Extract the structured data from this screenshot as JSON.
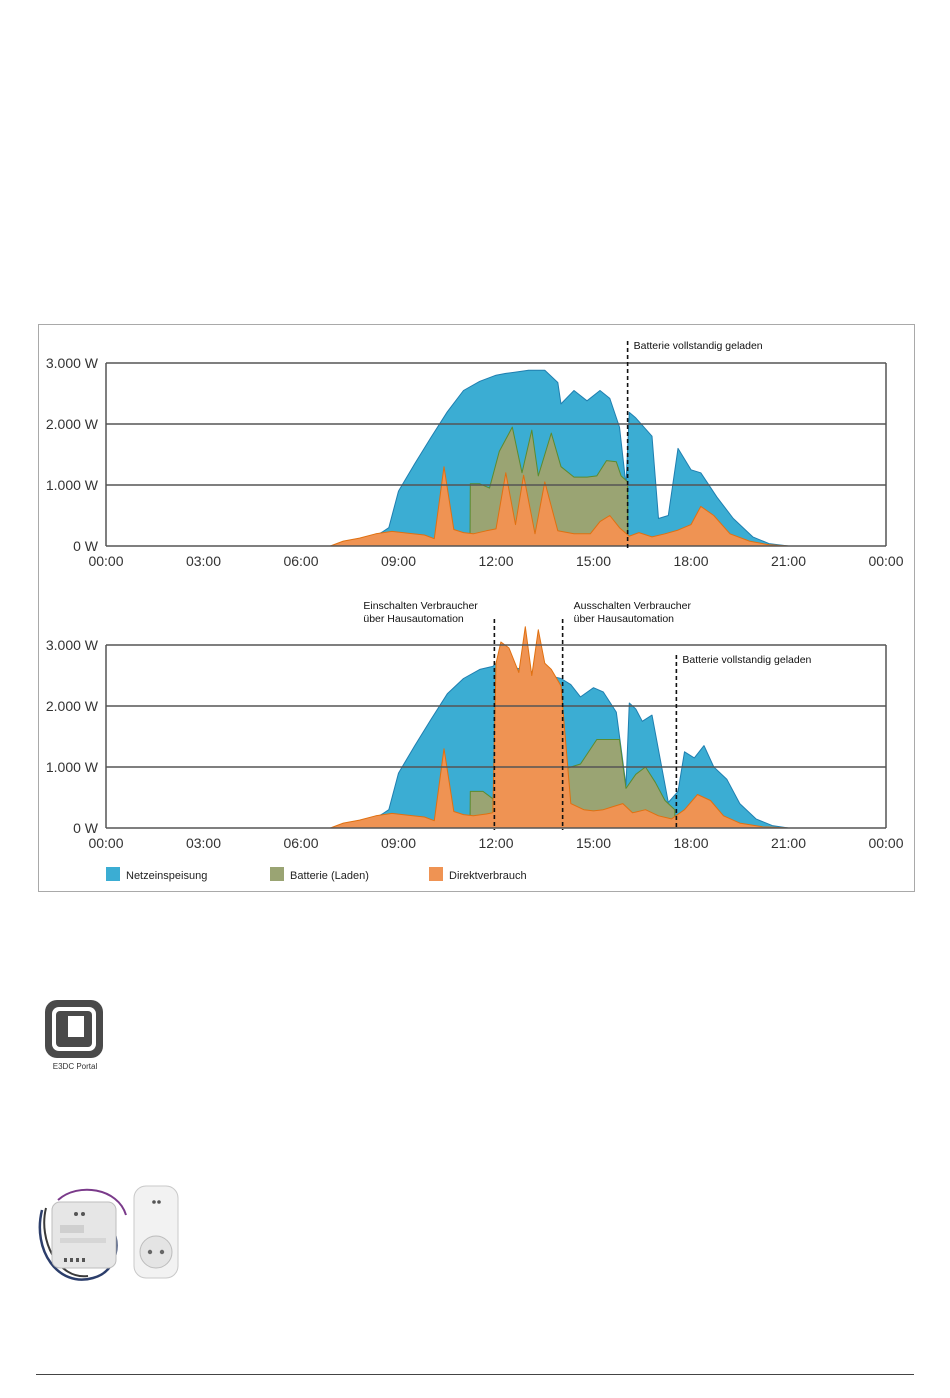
{
  "colors": {
    "netzeinspeisung": "#3badd3",
    "batterie": "#9aa473",
    "direktverbrauch": "#ef9353",
    "batterie_line": "#5b8b2e",
    "direkt_line": "#e07010",
    "netz_line": "#1f7fb0",
    "grid": "#555555"
  },
  "portal": {
    "icon": "e3dc-portal-icon",
    "label": "E3DC Portal"
  },
  "devices": {
    "icon": "smart-home-actuator-and-plug-adapter"
  },
  "legend": [
    {
      "key": "netzeinspeisung",
      "label": "Netzeinspeisung"
    },
    {
      "key": "batterie",
      "label": "Batterie (Laden)"
    },
    {
      "key": "direktverbrauch",
      "label": "Direktverbrauch"
    }
  ],
  "chart_data": [
    {
      "type": "area",
      "stacked": false,
      "x_unit": "hours",
      "xlim": [
        0,
        24
      ],
      "ylim": [
        0,
        3000
      ],
      "yticks": [
        "0 W",
        "1.000 W",
        "2.000 W",
        "3.000 W"
      ],
      "ytick_values": [
        0,
        1000,
        2000,
        3000
      ],
      "xticks": [
        "00:00",
        "03:00",
        "06:00",
        "09:00",
        "12:00",
        "15:00",
        "18:00",
        "21:00",
        "00:00"
      ],
      "xtick_values": [
        0,
        3,
        6,
        9,
        12,
        15,
        18,
        21,
        24
      ],
      "grid": true,
      "series": [
        {
          "name": "Netzeinspeisung",
          "key": "netzeinspeisung",
          "x": [
            6.9,
            7.5,
            8,
            8.5,
            8.7,
            9,
            9.5,
            10,
            10.5,
            11,
            11.5,
            12,
            12.3,
            12.6,
            13,
            13.5,
            13.9,
            14,
            14.4,
            14.8,
            15.2,
            15.5,
            15.8,
            16,
            16.1,
            16.3,
            16.8,
            17,
            17.3,
            17.6,
            18,
            18.3,
            18.8,
            19.3,
            19.9,
            20.4,
            21
          ],
          "y": [
            0,
            40,
            90,
            230,
            300,
            900,
            1350,
            1780,
            2200,
            2550,
            2700,
            2800,
            2830,
            2850,
            2880,
            2880,
            2680,
            2330,
            2550,
            2380,
            2550,
            2420,
            1950,
            1000,
            2190,
            2100,
            1800,
            450,
            500,
            1600,
            1250,
            1200,
            800,
            450,
            150,
            40,
            0
          ]
        },
        {
          "name": "Batterie (Laden)",
          "key": "batterie",
          "x": [
            11.2,
            11.21,
            11.5,
            11.8,
            12.1,
            12.5,
            12.8,
            13.1,
            13.3,
            13.7,
            14.0,
            14.4,
            14.8,
            15.1,
            15.4,
            15.7,
            15.85,
            16.05,
            16.06
          ],
          "y": [
            0,
            1020,
            1020,
            950,
            1550,
            1950,
            1200,
            1900,
            1150,
            1850,
            1300,
            1130,
            1130,
            1150,
            1400,
            1380,
            1150,
            1050,
            0
          ]
        },
        {
          "name": "Direktverbrauch",
          "key": "direktverbrauch",
          "x": [
            6.9,
            7.3,
            7.8,
            8.3,
            8.8,
            9.3,
            9.8,
            10.1,
            10.4,
            10.7,
            11,
            11.3,
            11.7,
            12,
            12.3,
            12.6,
            12.85,
            13.2,
            13.5,
            13.9,
            14.4,
            14.9,
            15.2,
            15.5,
            15.8,
            16.1,
            16.4,
            16.8,
            17.2,
            17.6,
            18,
            18.3,
            18.7,
            19.2,
            19.8,
            20.4,
            21
          ],
          "y": [
            0,
            80,
            130,
            200,
            240,
            210,
            180,
            120,
            1300,
            270,
            220,
            200,
            250,
            280,
            1200,
            350,
            1160,
            200,
            1050,
            250,
            200,
            200,
            400,
            500,
            300,
            160,
            220,
            150,
            200,
            260,
            350,
            650,
            500,
            200,
            80,
            20,
            0
          ]
        }
      ],
      "markers": [
        {
          "x": 16.05,
          "label": "Batterie vollstandig geladen"
        }
      ]
    },
    {
      "type": "area",
      "stacked": false,
      "x_unit": "hours",
      "xlim": [
        0,
        24
      ],
      "ylim": [
        0,
        3000
      ],
      "yticks": [
        "0 W",
        "1.000 W",
        "2.000 W",
        "3.000 W"
      ],
      "ytick_values": [
        0,
        1000,
        2000,
        3000
      ],
      "xticks": [
        "00:00",
        "03:00",
        "06:00",
        "09:00",
        "12:00",
        "15:00",
        "18:00",
        "21:00",
        "00:00"
      ],
      "xtick_values": [
        0,
        3,
        6,
        9,
        12,
        15,
        18,
        21,
        24
      ],
      "grid": true,
      "series": [
        {
          "name": "Netzeinspeisung",
          "key": "netzeinspeisung",
          "x": [
            6.9,
            7.5,
            8,
            8.5,
            8.7,
            9,
            9.5,
            10,
            10.5,
            11,
            11.5,
            11.9,
            12.0,
            14.0,
            14.3,
            14.6,
            15.0,
            15.3,
            15.7,
            16.0,
            16.1,
            16.3,
            16.5,
            16.8,
            17.3,
            17.6,
            17.8,
            18.1,
            18.4,
            18.7,
            19.1,
            19.5,
            20,
            20.5,
            21
          ],
          "y": [
            0,
            40,
            90,
            230,
            300,
            900,
            1350,
            1780,
            2200,
            2450,
            2600,
            2650,
            2700,
            2450,
            2350,
            2150,
            2300,
            2230,
            1900,
            700,
            2050,
            1950,
            1750,
            1850,
            420,
            600,
            1250,
            1150,
            1350,
            1000,
            800,
            400,
            150,
            40,
            0
          ]
        },
        {
          "name": "Batterie (Laden)",
          "key": "batterie",
          "x": [
            11.2,
            11.21,
            11.6,
            11.9,
            11.95,
            14.0,
            14.01,
            14.6,
            15.1,
            15.5,
            15.8,
            16.0,
            16.3,
            16.6,
            16.9,
            17.2,
            17.5,
            17.51
          ],
          "y": [
            0,
            600,
            600,
            480,
            0,
            0,
            950,
            1050,
            1450,
            1450,
            1450,
            650,
            880,
            1000,
            750,
            450,
            300,
            0
          ]
        },
        {
          "name": "Direktverbrauch",
          "key": "direktverbrauch",
          "x": [
            6.9,
            7.3,
            7.8,
            8.3,
            8.8,
            9.3,
            9.8,
            10.1,
            10.4,
            10.7,
            11,
            11.3,
            11.7,
            11.9,
            12.0,
            12.15,
            12.4,
            12.7,
            12.9,
            13.1,
            13.3,
            13.5,
            13.7,
            14.0,
            14.3,
            14.7,
            15.0,
            15.3,
            15.6,
            15.9,
            16.2,
            16.6,
            17.0,
            17.4,
            17.8,
            18.2,
            18.6,
            19.0,
            19.5,
            20.2,
            21
          ],
          "y": [
            0,
            80,
            130,
            200,
            240,
            210,
            180,
            120,
            1300,
            270,
            220,
            200,
            230,
            250,
            2700,
            3050,
            2950,
            2550,
            3300,
            2500,
            3250,
            2700,
            2600,
            2330,
            400,
            300,
            280,
            300,
            350,
            400,
            250,
            300,
            200,
            150,
            300,
            550,
            450,
            200,
            80,
            20,
            0
          ]
        }
      ],
      "markers": [
        {
          "x": 11.95,
          "label": "Einschalten Verbraucher über Hausautomation"
        },
        {
          "x": 14.05,
          "label": "Ausschalten Verbraucher über Hausautomation"
        },
        {
          "x": 17.55,
          "label": "Batterie vollstandig geladen"
        }
      ]
    }
  ]
}
